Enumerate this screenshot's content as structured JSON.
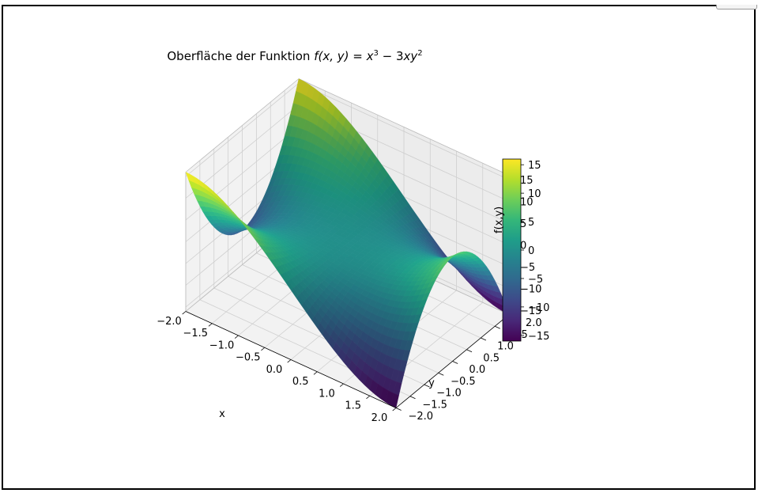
{
  "chart_data": {
    "type": "surface",
    "title": "Oberfläche der Funktion",
    "title_math": {
      "lhs": "f(x, y) = ",
      "b1": "x",
      "e1": "3",
      "mid": " − 3",
      "b2": "xy",
      "e2": "2"
    },
    "function": "x^3 - 3*x*y^2",
    "xlabel": "x",
    "ylabel": "y",
    "zlabel": "f(x,y)",
    "xlim": [
      -2.0,
      2.0
    ],
    "ylim": [
      -2.0,
      2.0
    ],
    "zlim": [
      -16,
      16
    ],
    "x_ticks": [
      "−2.0",
      "−1.5",
      "−1.0",
      "−0.5",
      "0.0",
      "0.5",
      "1.0",
      "1.5",
      "2.0"
    ],
    "y_ticks": [
      "−2.0",
      "−1.5",
      "−1.0",
      "−0.5",
      "0.0",
      "0.5",
      "1.0",
      "1.5",
      "2.0"
    ],
    "z_ticks": [
      "−15",
      "−10",
      "−5",
      "0",
      "5",
      "10",
      "15"
    ],
    "colorbar": {
      "colormap": "viridis",
      "range": [
        -16,
        16
      ],
      "ticks": [
        "−15",
        "−10",
        "−5",
        "0",
        "5",
        "10",
        "15"
      ]
    },
    "colormap_stops": [
      "#440154",
      "#482878",
      "#3e4989",
      "#31688e",
      "#26828e",
      "#1f9e89",
      "#35b779",
      "#6ece58",
      "#b5de2b",
      "#fde725"
    ],
    "grid": true
  }
}
